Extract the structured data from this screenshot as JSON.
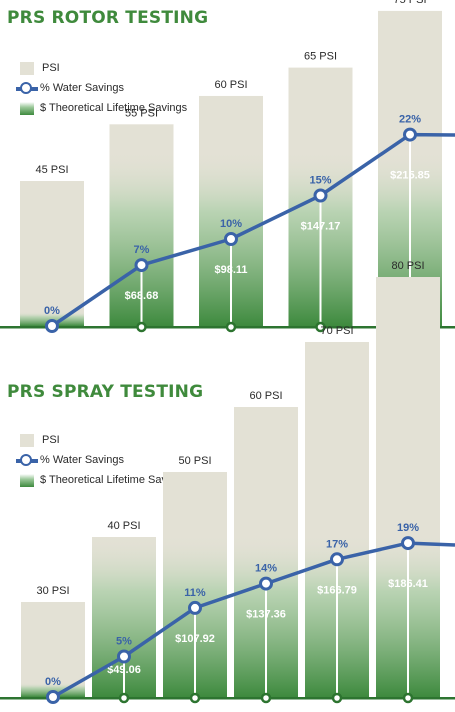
{
  "colors": {
    "psi": "#e3e1d5",
    "line": "#3a63a8",
    "savings_dark": "#3e8a3e",
    "title": "#3f8a3c",
    "baseline": "#2d7430"
  },
  "chart_data": [
    {
      "type": "bar",
      "title": "PRS ROTOR TESTING",
      "legend": {
        "psi": "PSI",
        "water": "% Water Savings",
        "savings": "$ Theoretical Lifetime Savings"
      },
      "categories": [
        "45 PSI",
        "55 PSI",
        "60 PSI",
        "65 PSI",
        "75 PSI"
      ],
      "series": [
        {
          "name": "PSI",
          "values": [
            45,
            55,
            60,
            65,
            75
          ],
          "labels": [
            "45 PSI",
            "55 PSI",
            "60 PSI",
            "65 PSI",
            "75 PSI"
          ]
        },
        {
          "name": "% Water Savings",
          "values": [
            0,
            7,
            10,
            15,
            22
          ],
          "labels": [
            "0%",
            "7%",
            "10%",
            "15%",
            "22%"
          ]
        },
        {
          "name": "$ Theoretical Lifetime Savings",
          "values": [
            0,
            68.68,
            98.11,
            147.17,
            215.85
          ],
          "labels": [
            "",
            "$68.68",
            "$98.11",
            "$147.17",
            "$215.85"
          ]
        }
      ]
    },
    {
      "type": "bar",
      "title": "PRS SPRAY TESTING",
      "legend": {
        "psi": "PSI",
        "water": "% Water Savings",
        "savings": "$ Theoretical Lifetime Savings"
      },
      "categories": [
        "30 PSI",
        "40 PSI",
        "50 PSI",
        "60 PSI",
        "70 PSI",
        "80 PSI"
      ],
      "series": [
        {
          "name": "PSI",
          "values": [
            30,
            40,
            50,
            60,
            70,
            80
          ],
          "labels": [
            "30 PSI",
            "40 PSI",
            "50 PSI",
            "60 PSI",
            "70 PSI",
            "80 PSI"
          ]
        },
        {
          "name": "% Water Savings",
          "values": [
            0,
            5,
            11,
            14,
            17,
            19
          ],
          "labels": [
            "0%",
            "5%",
            "11%",
            "14%",
            "17%",
            "19%"
          ]
        },
        {
          "name": "$ Theoretical Lifetime Savings",
          "values": [
            0,
            49.06,
            107.92,
            137.36,
            166.79,
            186.41
          ],
          "labels": [
            "",
            "$49.06",
            "$107.92",
            "$137.36",
            "$166.79",
            "$186.41"
          ]
        }
      ]
    }
  ]
}
